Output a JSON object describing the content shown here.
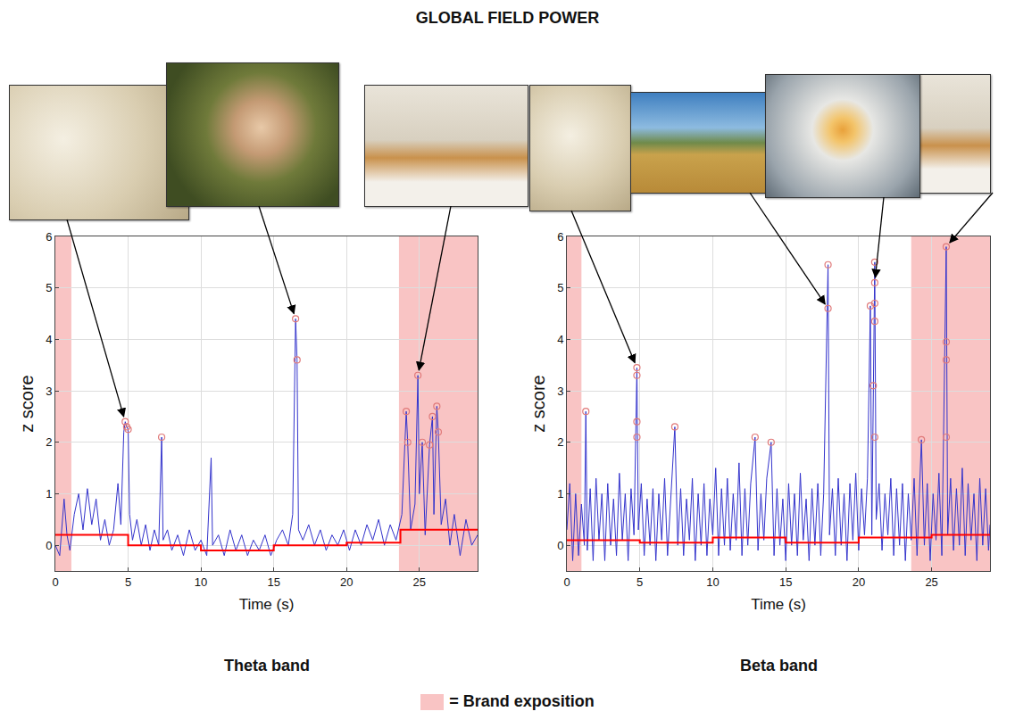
{
  "title": "GLOBAL FIELD POWER",
  "note": "= Brand exposition",
  "note_color": "#f9c4c4",
  "chart_data": [
    {
      "type": "line",
      "title": "Theta band",
      "x_label": "Time (s)",
      "y_label": "z score",
      "xlim": [
        0,
        29
      ],
      "ylim": [
        -0.5,
        6
      ],
      "xticks": [
        0,
        5,
        10,
        15,
        20,
        25
      ],
      "yticks": [
        0,
        1,
        2,
        3,
        4,
        5,
        6
      ],
      "grid": true,
      "brand_exposition": [
        [
          0,
          1.1
        ],
        [
          23.6,
          29
        ]
      ],
      "series": [
        {
          "type": "line",
          "color": "#3333cc",
          "x": [
            0,
            0.3,
            0.6,
            0.8,
            1.0,
            1.3,
            1.6,
            1.9,
            2.2,
            2.5,
            2.8,
            3.1,
            3.4,
            3.7,
            4.0,
            4.3,
            4.5,
            4.7,
            4.8,
            4.9,
            5.0,
            5.1,
            5.3,
            5.6,
            5.9,
            6.2,
            6.5,
            6.8,
            7.1,
            7.3,
            7.4,
            7.7,
            8.0,
            8.4,
            8.8,
            9.2,
            9.6,
            10.0,
            10.4,
            10.7,
            10.8,
            11.2,
            11.6,
            12.0,
            12.4,
            12.8,
            13.2,
            13.6,
            14.0,
            14.4,
            14.8,
            15.2,
            15.6,
            16.0,
            16.3,
            16.5,
            16.6,
            16.7,
            17.0,
            17.4,
            17.8,
            18.2,
            18.6,
            19.0,
            19.4,
            19.8,
            20.2,
            20.6,
            21.0,
            21.4,
            21.8,
            22.2,
            22.6,
            23.0,
            23.4,
            23.8,
            24.1,
            24.2,
            24.4,
            24.7,
            24.9,
            25.0,
            25.2,
            25.4,
            25.7,
            25.9,
            26.0,
            26.2,
            26.3,
            26.5,
            26.8,
            27.1,
            27.4,
            27.8,
            28.2,
            28.6,
            29.0
          ],
          "values": [
            0.0,
            -0.2,
            0.9,
            0.2,
            -0.1,
            0.6,
            1.0,
            0.3,
            1.1,
            0.4,
            0.9,
            0.1,
            0.5,
            0.0,
            0.3,
            1.2,
            0.4,
            2.2,
            2.4,
            2.3,
            2.25,
            0.6,
            0.1,
            0.5,
            0.0,
            0.4,
            -0.1,
            0.3,
            0.0,
            2.1,
            0.1,
            0.3,
            -0.1,
            0.2,
            -0.2,
            0.3,
            -0.1,
            0.1,
            -0.2,
            1.7,
            0.0,
            0.2,
            -0.2,
            0.3,
            -0.1,
            0.2,
            -0.2,
            0.1,
            -0.1,
            0.2,
            -0.2,
            0.1,
            0.3,
            0.0,
            0.6,
            4.4,
            3.6,
            0.3,
            0.1,
            0.4,
            0.0,
            0.3,
            -0.1,
            0.2,
            0.0,
            0.3,
            -0.1,
            0.3,
            0.0,
            0.4,
            0.1,
            0.5,
            0.0,
            0.4,
            0.1,
            0.6,
            2.6,
            2.0,
            0.3,
            0.8,
            3.3,
            1.0,
            2.0,
            0.2,
            1.95,
            2.5,
            0.6,
            2.7,
            2.2,
            0.4,
            0.9,
            0.0,
            0.6,
            -0.2,
            0.5,
            0.0,
            0.2
          ]
        },
        {
          "type": "line",
          "line_style": "step",
          "color": "#ff0000",
          "x": [
            0,
            5,
            10,
            15,
            20,
            23.7,
            29
          ],
          "values": [
            0.2,
            0.0,
            -0.1,
            0.0,
            0.05,
            0.3,
            0.3
          ]
        },
        {
          "type": "scatter",
          "marker": "circle-open",
          "color": "#e07a7a",
          "x": [
            4.8,
            4.9,
            5.0,
            7.3,
            16.5,
            16.6,
            24.1,
            24.2,
            24.9,
            25.2,
            25.7,
            25.9,
            26.2,
            26.3
          ],
          "values": [
            2.4,
            2.3,
            2.25,
            2.1,
            4.4,
            3.6,
            2.6,
            2.0,
            3.3,
            2.0,
            1.95,
            2.5,
            2.7,
            2.2
          ]
        }
      ]
    },
    {
      "type": "line",
      "title": "Beta band",
      "x_label": "Time (s)",
      "y_label": "z score",
      "xlim": [
        0,
        29
      ],
      "ylim": [
        -0.5,
        6
      ],
      "xticks": [
        0,
        5,
        10,
        15,
        20,
        25
      ],
      "yticks": [
        0,
        1,
        2,
        3,
        4,
        5,
        6
      ],
      "grid": true,
      "brand_exposition": [
        [
          0,
          1.0
        ],
        [
          23.6,
          29
        ]
      ],
      "series": [
        {
          "type": "line",
          "color": "#3333cc",
          "x": [
            0,
            0.2,
            0.4,
            0.6,
            0.8,
            1.0,
            1.2,
            1.3,
            1.4,
            1.6,
            1.8,
            2.0,
            2.2,
            2.4,
            2.6,
            2.8,
            3.0,
            3.2,
            3.4,
            3.6,
            3.8,
            4.0,
            4.2,
            4.4,
            4.6,
            4.8,
            4.9,
            5.1,
            5.3,
            5.5,
            5.7,
            5.9,
            6.1,
            6.3,
            6.5,
            6.7,
            6.9,
            7.1,
            7.4,
            7.6,
            7.8,
            8.0,
            8.2,
            8.4,
            8.6,
            8.8,
            9.0,
            9.2,
            9.4,
            9.6,
            9.8,
            10.0,
            10.2,
            10.4,
            10.6,
            10.8,
            11.0,
            11.2,
            11.4,
            11.6,
            11.8,
            12.0,
            12.2,
            12.4,
            12.6,
            12.9,
            13.1,
            13.3,
            13.5,
            13.7,
            14.0,
            14.2,
            14.4,
            14.6,
            14.8,
            15.0,
            15.2,
            15.4,
            15.6,
            15.8,
            16.0,
            16.2,
            16.4,
            16.6,
            16.8,
            17.0,
            17.2,
            17.4,
            17.6,
            17.9,
            18.0,
            18.2,
            18.4,
            18.6,
            18.8,
            19.0,
            19.2,
            19.4,
            19.6,
            19.8,
            20.0,
            20.2,
            20.4,
            20.6,
            20.8,
            20.9,
            21.1,
            21.2,
            21.4,
            21.6,
            21.8,
            22.0,
            22.2,
            22.4,
            22.6,
            22.8,
            23.0,
            23.2,
            23.4,
            23.6,
            23.8,
            24.0,
            24.3,
            24.5,
            24.7,
            24.9,
            25.1,
            25.3,
            25.5,
            25.7,
            26.0,
            26.1,
            26.3,
            26.5,
            26.7,
            26.9,
            27.1,
            27.3,
            27.5,
            27.7,
            27.9,
            28.1,
            28.3,
            28.5,
            28.7,
            28.9,
            29.0
          ],
          "values": [
            0.3,
            1.2,
            -0.3,
            1.0,
            -0.2,
            0.8,
            0.0,
            2.6,
            -0.1,
            1.1,
            -0.3,
            1.3,
            0.1,
            1.0,
            -0.3,
            1.2,
            0.0,
            0.9,
            -0.2,
            1.4,
            0.1,
            1.0,
            -0.3,
            1.1,
            0.2,
            3.45,
            0.3,
            1.2,
            -0.2,
            0.9,
            0.0,
            1.1,
            -0.3,
            1.0,
            0.1,
            1.3,
            -0.2,
            0.8,
            2.3,
            0.0,
            1.1,
            -0.2,
            0.9,
            0.1,
            1.3,
            -0.3,
            1.0,
            0.0,
            1.2,
            -0.2,
            0.9,
            0.2,
            1.5,
            -0.2,
            1.1,
            0.0,
            1.3,
            -0.1,
            1.0,
            0.1,
            1.6,
            -0.2,
            1.1,
            0.0,
            1.2,
            2.1,
            -0.1,
            1.0,
            0.1,
            1.3,
            2.0,
            -0.2,
            1.1,
            0.0,
            0.9,
            -0.3,
            1.2,
            0.0,
            1.0,
            -0.2,
            1.4,
            0.1,
            0.9,
            -0.3,
            1.1,
            0.0,
            1.2,
            -0.2,
            1.0,
            5.45,
            0.2,
            1.1,
            -0.2,
            1.3,
            0.0,
            1.0,
            -0.3,
            1.2,
            0.1,
            1.4,
            -0.1,
            1.1,
            0.2,
            1.3,
            4.65,
            0.2,
            5.5,
            0.5,
            1.2,
            -0.1,
            1.0,
            0.2,
            1.3,
            -0.2,
            1.1,
            0.0,
            1.2,
            -0.3,
            1.0,
            0.1,
            1.3,
            -0.2,
            2.05,
            0.0,
            1.2,
            -0.3,
            1.0,
            0.1,
            1.4,
            -0.2,
            5.8,
            0.2,
            1.3,
            -0.1,
            1.1,
            0.0,
            1.5,
            -0.2,
            1.2,
            0.1,
            1.0,
            -0.3,
            1.3,
            0.0,
            1.1,
            -0.1,
            0.4
          ]
        },
        {
          "type": "line",
          "line_style": "step",
          "color": "#ff0000",
          "x": [
            0,
            5,
            10,
            15,
            20,
            25,
            29
          ],
          "values": [
            0.1,
            0.05,
            0.15,
            0.05,
            0.15,
            0.2,
            0.2
          ]
        },
        {
          "type": "scatter",
          "marker": "circle-open",
          "color": "#e07a7a",
          "x": [
            1.3,
            4.8,
            4.8,
            4.8,
            4.8,
            7.4,
            12.9,
            14.0,
            17.9,
            17.9,
            20.8,
            21.1,
            21.1,
            21.1,
            21.1,
            21.0,
            21.1,
            24.3,
            26.0,
            26.0,
            26.0,
            26.0
          ],
          "values": [
            2.6,
            3.45,
            3.3,
            2.4,
            2.1,
            2.3,
            2.1,
            2.0,
            5.45,
            4.6,
            4.65,
            5.5,
            5.1,
            4.7,
            4.35,
            3.1,
            2.1,
            2.05,
            5.8,
            3.95,
            3.6,
            2.1
          ]
        }
      ]
    }
  ]
}
